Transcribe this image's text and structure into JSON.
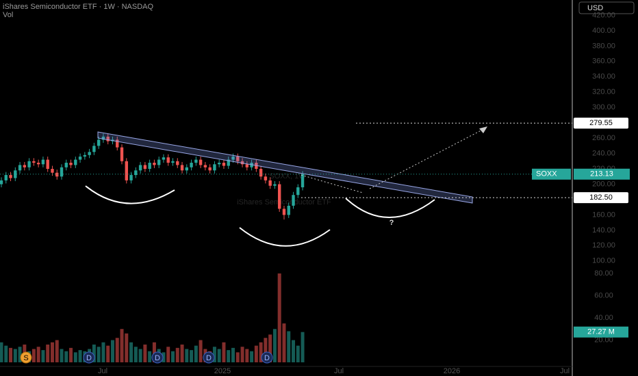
{
  "chart_data": {
    "type": "candlestick",
    "title": "iShares Semiconductor ETF · 1W · NASDAQ",
    "volume_label": "Vol",
    "watermark": "SOXX, 1W",
    "watermark_subtitle": "iShares Semiconductor ETF",
    "currency": "USD",
    "symbol": "SOXX",
    "annotation": "?",
    "up_color": "#26a69a",
    "down_color": "#ef5350",
    "open": [
      200,
      205,
      212,
      208,
      218,
      225,
      222,
      230,
      228,
      226,
      232,
      220,
      215,
      210,
      222,
      228,
      225,
      232,
      236,
      238,
      242,
      250,
      258,
      262,
      256,
      258,
      248,
      230,
      205,
      212,
      218,
      225,
      220,
      228,
      225,
      232,
      235,
      228,
      230,
      225,
      218,
      222,
      228,
      232,
      225,
      222,
      218,
      226,
      228,
      224,
      232,
      236,
      230,
      226,
      222,
      228,
      220,
      210,
      205,
      198,
      200,
      168,
      160,
      172,
      186,
      196
    ],
    "high": [
      209,
      216,
      216,
      222,
      229,
      229,
      234,
      234,
      232,
      236,
      236,
      224,
      219,
      226,
      232,
      232,
      236,
      240,
      242,
      246,
      254,
      262,
      266,
      266,
      262,
      262,
      252,
      234,
      216,
      222,
      229,
      229,
      232,
      232,
      236,
      239,
      239,
      234,
      234,
      229,
      226,
      232,
      236,
      236,
      229,
      226,
      230,
      232,
      232,
      236,
      240,
      240,
      234,
      230,
      232,
      232,
      224,
      214,
      209,
      204,
      204,
      172,
      176,
      190,
      200,
      217
    ],
    "low": [
      196,
      201,
      204,
      204,
      214,
      218,
      218,
      224,
      222,
      222,
      216,
      211,
      206,
      206,
      218,
      221,
      221,
      228,
      232,
      234,
      238,
      246,
      254,
      252,
      252,
      244,
      226,
      201,
      201,
      208,
      214,
      216,
      216,
      221,
      221,
      228,
      224,
      224,
      221,
      214,
      214,
      218,
      224,
      221,
      218,
      214,
      214,
      222,
      220,
      220,
      228,
      226,
      222,
      218,
      218,
      216,
      206,
      201,
      194,
      194,
      164,
      154,
      156,
      168,
      182,
      192
    ],
    "close": [
      205,
      212,
      208,
      218,
      225,
      222,
      230,
      228,
      226,
      232,
      220,
      215,
      210,
      222,
      228,
      225,
      232,
      236,
      238,
      242,
      250,
      258,
      262,
      256,
      258,
      248,
      230,
      205,
      212,
      218,
      225,
      220,
      228,
      225,
      232,
      235,
      228,
      230,
      225,
      218,
      222,
      228,
      232,
      225,
      222,
      218,
      226,
      228,
      224,
      232,
      236,
      230,
      226,
      222,
      228,
      220,
      210,
      205,
      198,
      200,
      168,
      160,
      172,
      186,
      196,
      213.13
    ],
    "volume": [
      18,
      15,
      13,
      12,
      14,
      16,
      10,
      12,
      14,
      11,
      16,
      18,
      20,
      12,
      10,
      13,
      9,
      11,
      10,
      12,
      16,
      14,
      18,
      15,
      20,
      22,
      30,
      26,
      18,
      14,
      12,
      16,
      10,
      18,
      12,
      9,
      14,
      10,
      13,
      16,
      12,
      11,
      15,
      20,
      12,
      10,
      14,
      12,
      18,
      11,
      13,
      9,
      14,
      12,
      10,
      15,
      18,
      22,
      25,
      30,
      80,
      35,
      28,
      20,
      15,
      27.27
    ],
    "volume_value_label": "27.27 M",
    "ylim": [
      -32,
      440
    ],
    "yticks": [
      {
        "value": 100,
        "label": "100.00"
      },
      {
        "value": 120,
        "label": "120.00"
      },
      {
        "value": 140,
        "label": "140.00"
      },
      {
        "value": 160,
        "label": "160.00"
      },
      {
        "value": 200,
        "label": "200.00"
      },
      {
        "value": 220,
        "label": "220.00"
      },
      {
        "value": 240,
        "label": "240.00"
      },
      {
        "value": 260,
        "label": "260.00"
      },
      {
        "value": 300,
        "label": "300.00"
      },
      {
        "value": 320,
        "label": "320.00"
      },
      {
        "value": 340,
        "label": "340.00"
      },
      {
        "value": 360,
        "label": "360.00"
      },
      {
        "value": 380,
        "label": "380.00"
      },
      {
        "value": 400,
        "label": "400.00"
      },
      {
        "value": 420,
        "label": "420.00"
      }
    ],
    "volume_ylim": [
      0,
      80
    ],
    "volume_ticks": [
      {
        "value": 20,
        "label": "20.00"
      },
      {
        "value": 40,
        "label": "40.00"
      },
      {
        "value": 60,
        "label": "60.00"
      },
      {
        "value": 80,
        "label": "80.00"
      }
    ],
    "price_lines": [
      {
        "value": 279.55
      },
      {
        "value": 182.5,
        "label": "182.50"
      }
    ],
    "x_labels": [
      "Jul",
      "2025",
      "Jul",
      "2026",
      "Jul"
    ],
    "events": [
      "S",
      "D",
      "D",
      "D",
      "D"
    ]
  }
}
